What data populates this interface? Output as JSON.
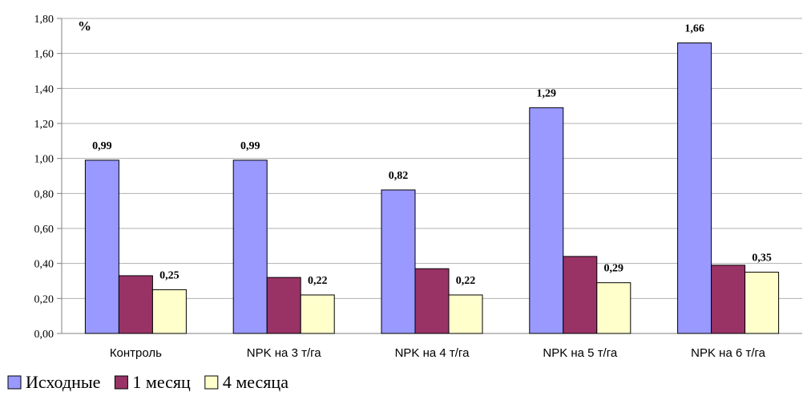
{
  "chart_data": {
    "type": "bar",
    "ylabel": "%",
    "ylim": [
      0,
      1.8
    ],
    "y_ticks": [
      "0,00",
      "0,20",
      "0,40",
      "0,60",
      "0,80",
      "1,00",
      "1,20",
      "1,40",
      "1,60",
      "1,80"
    ],
    "grid": true,
    "legend_position": "bottom-left",
    "categories": [
      "Контроль",
      "NPK на 3 т/га",
      "NPK на 4 т/га",
      "NPK на 5 т/га",
      "NPK на 6 т/га"
    ],
    "series": [
      {
        "name": "Исходные",
        "values": [
          0.99,
          0.99,
          0.82,
          1.29,
          1.66
        ],
        "labels": [
          "0,99",
          "0,99",
          "0,82",
          "1,29",
          "1,66"
        ],
        "color": "#9999ff"
      },
      {
        "name": "1 месяц",
        "values": [
          0.33,
          0.32,
          0.37,
          0.44,
          0.39
        ],
        "labels": [
          null,
          null,
          null,
          null,
          null
        ],
        "color": "#993366"
      },
      {
        "name": "4 месяца",
        "values": [
          0.25,
          0.22,
          0.22,
          0.29,
          0.35
        ],
        "labels": [
          "0,25",
          "0,22",
          "0,22",
          "0,29",
          "0,35"
        ],
        "color": "#ffffcc"
      }
    ]
  }
}
